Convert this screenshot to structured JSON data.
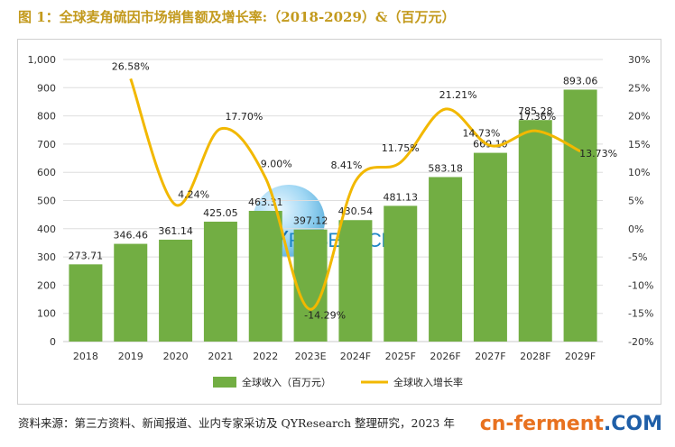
{
  "title": "图 1：全球麦角硫因市场销售额及增长率:（2018-2029）&（百万元）",
  "source": "资料来源：第三方资料、新闻报道、业内专家采访及 QYResearch 整理研究，2023 年",
  "watermark": {
    "text": "cn-ferment",
    "suffix": ".COM"
  },
  "logo": {
    "text_big": "QY",
    "text_rest": "RESEARCH"
  },
  "colors": {
    "bar": "#72ae43",
    "line": "#f2b800",
    "title": "#c39a1d"
  },
  "chart_data": {
    "type": "bar",
    "categories": [
      "2018",
      "2019",
      "2020",
      "2021",
      "2022",
      "2023E",
      "2024F",
      "2025F",
      "2026F",
      "2027F",
      "2028F",
      "2029F"
    ],
    "series": [
      {
        "name": "全球收入（百万元）",
        "type": "bar",
        "axis": "left",
        "values": [
          273.71,
          346.46,
          361.14,
          425.05,
          463.31,
          397.12,
          430.54,
          481.13,
          583.18,
          669.1,
          785.28,
          893.06
        ],
        "labels": [
          "273.71",
          "346.46",
          "361.14",
          "425.05",
          "463.31",
          "397.12",
          "430.54",
          "481.13",
          "583.18",
          "669.10",
          "785.28",
          "893.06"
        ]
      },
      {
        "name": "全球收入增长率",
        "type": "line",
        "axis": "right",
        "values": [
          null,
          26.58,
          4.24,
          17.7,
          9.0,
          -14.29,
          8.41,
          11.75,
          21.21,
          14.73,
          17.36,
          13.73
        ],
        "labels": [
          "",
          "26.58%",
          "4.24%",
          "17.70%",
          "9.00%",
          "-14.29%",
          "8.41%",
          "11.75%",
          "21.21%",
          "14.73%",
          "17.36%",
          "13.73%"
        ]
      }
    ],
    "y_left": {
      "min": 0,
      "max": 1000,
      "ticks": [
        0,
        100,
        200,
        300,
        400,
        500,
        600,
        700,
        800,
        900,
        1000
      ],
      "tick_labels": [
        "0",
        "100",
        "200",
        "300",
        "400",
        "500",
        "600",
        "700",
        "800",
        "900",
        "1,000"
      ]
    },
    "y_right": {
      "min": -20,
      "max": 30,
      "ticks": [
        -20,
        -15,
        -10,
        -5,
        0,
        5,
        10,
        15,
        20,
        25,
        30
      ],
      "tick_labels": [
        "-20%",
        "-15%",
        "-10%",
        "-5%",
        "0%",
        "5%",
        "10%",
        "15%",
        "20%",
        "25%",
        "30%"
      ]
    },
    "grid": true,
    "legend_position": "bottom"
  }
}
